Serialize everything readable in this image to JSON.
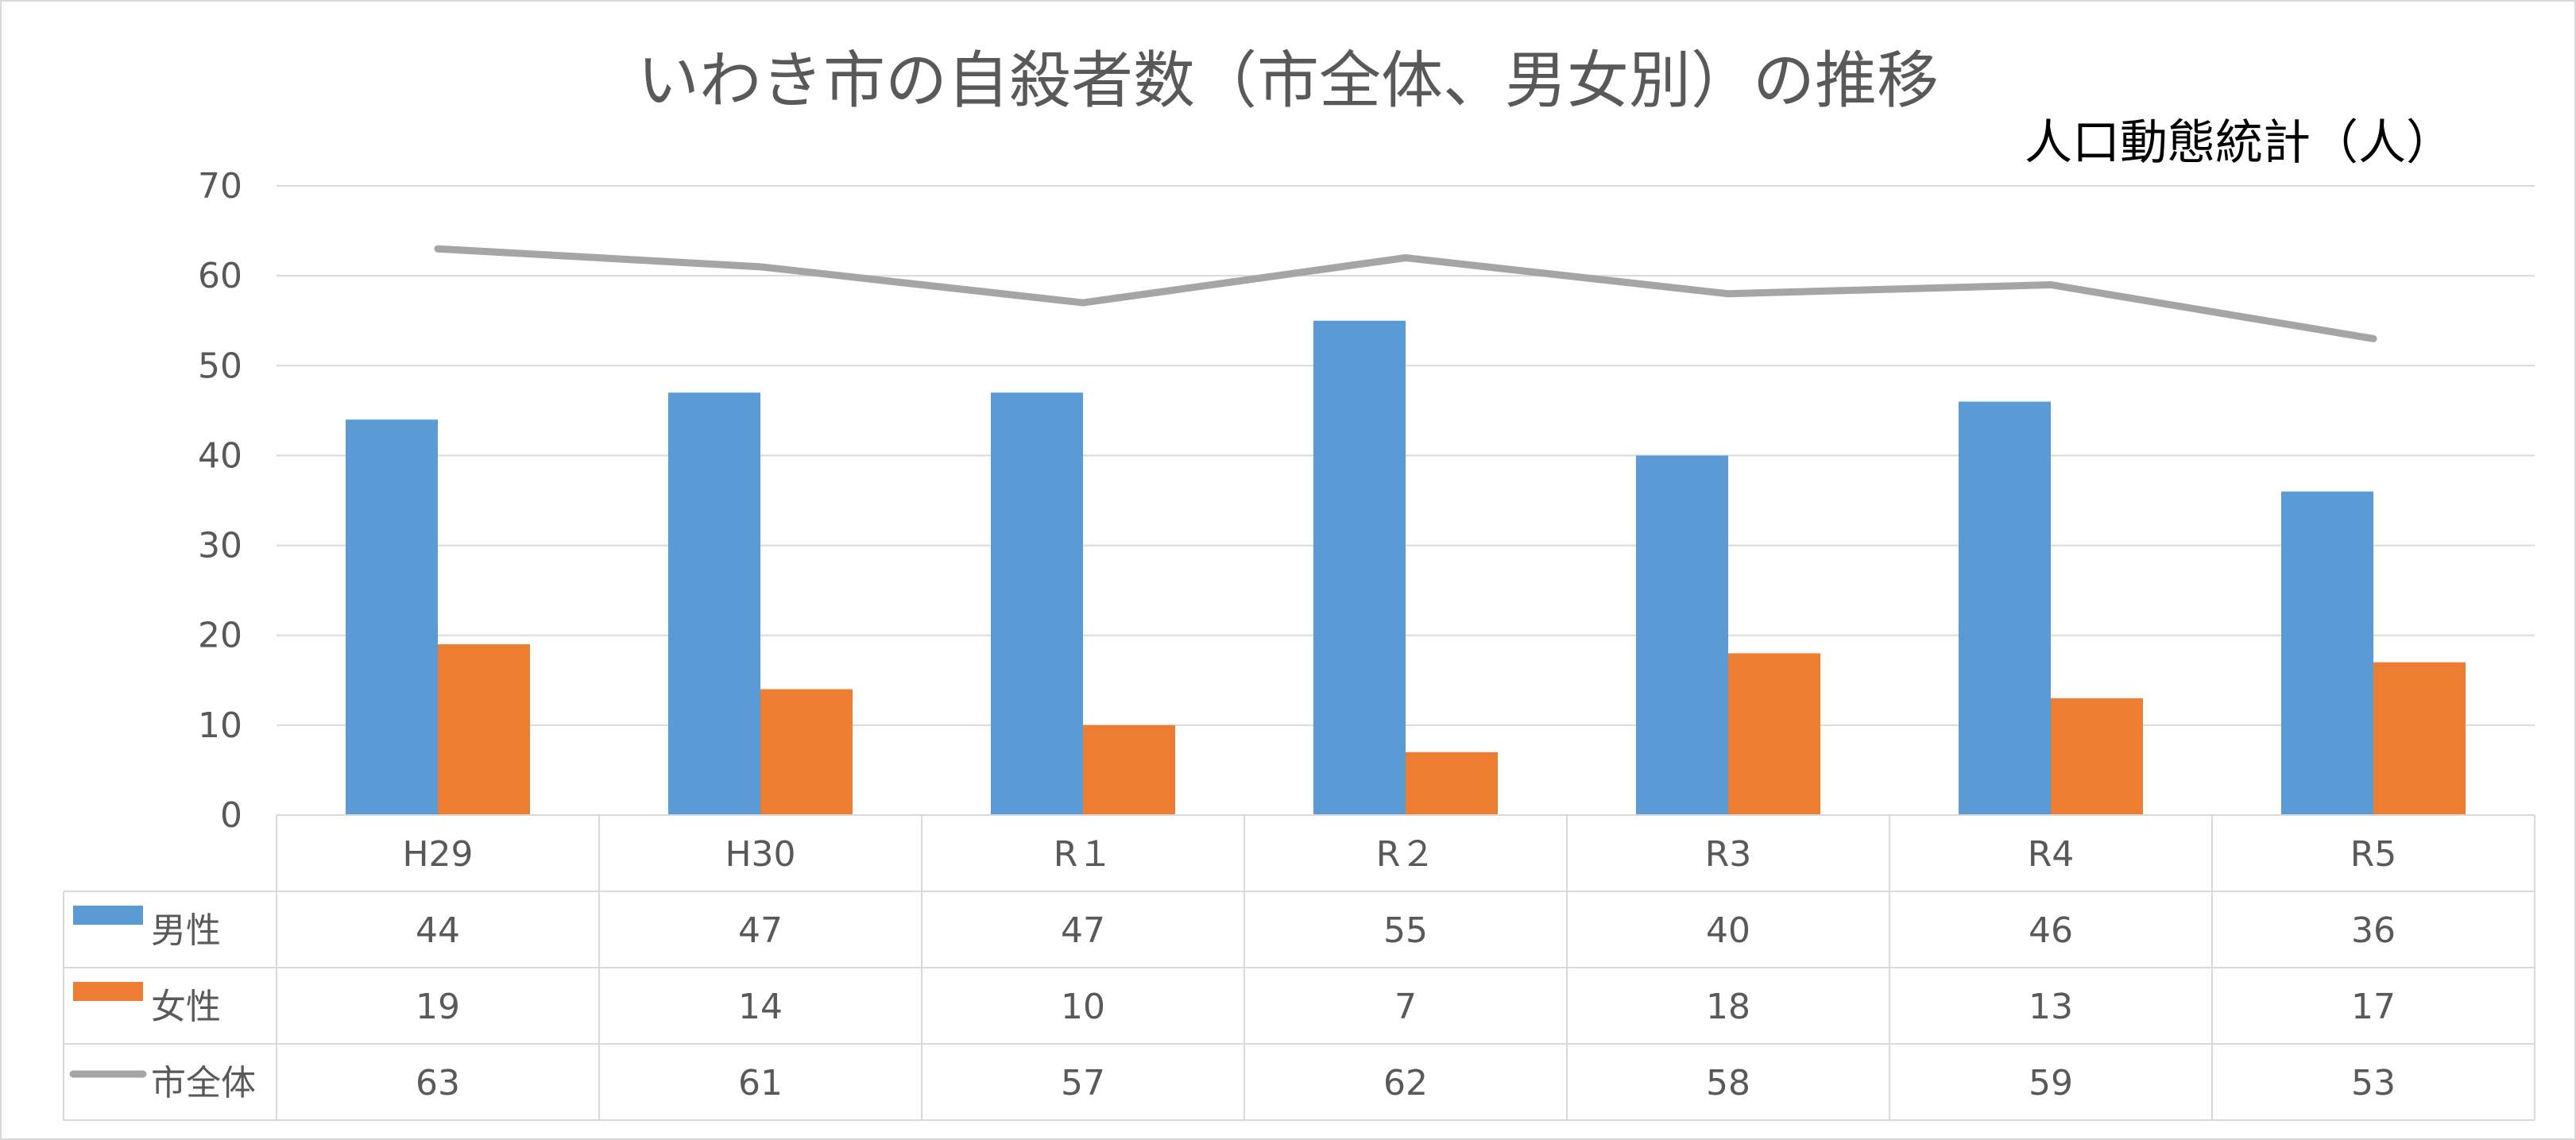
{
  "chart_data": {
    "type": "bar",
    "title": "いわき市の自殺者数（市全体、男女別）の推移",
    "source_label": "人口動態統計（人）",
    "categories": [
      "H29",
      "H30",
      "R１",
      "R２",
      "R3",
      "R4",
      "R5"
    ],
    "ylim": [
      0,
      70
    ],
    "yticks": [
      0,
      10,
      20,
      30,
      40,
      50,
      60,
      70
    ],
    "grid": true,
    "legend": "data-table",
    "series": [
      {
        "name": "男性",
        "kind": "bar",
        "color": "#5b9bd5",
        "values": [
          44,
          47,
          47,
          55,
          40,
          46,
          36
        ]
      },
      {
        "name": "女性",
        "kind": "bar",
        "color": "#ed7d31",
        "values": [
          19,
          14,
          10,
          7,
          18,
          13,
          17
        ]
      },
      {
        "name": "市全体",
        "kind": "line",
        "color": "#a5a5a5",
        "values": [
          63,
          61,
          57,
          62,
          58,
          59,
          53
        ]
      }
    ]
  }
}
